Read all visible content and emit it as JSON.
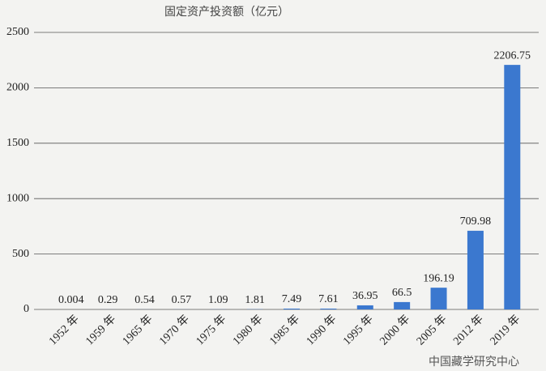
{
  "chart_data": {
    "type": "bar",
    "title": "固定资产投资额（亿元）",
    "categories": [
      "1952 年",
      "1959 年",
      "1965 年",
      "1970 年",
      "1975 年",
      "1980 年",
      "1985 年",
      "1990 年",
      "1995 年",
      "2000 年",
      "2005 年",
      "2012 年",
      "2019 年"
    ],
    "values": [
      0.004,
      0.29,
      0.54,
      0.57,
      1.09,
      1.81,
      7.49,
      7.61,
      36.95,
      66.5,
      196.19,
      709.98,
      2206.75
    ],
    "color": "#3b78cf",
    "ylim": [
      0,
      2500
    ],
    "yticks": [
      0,
      500,
      1000,
      1500,
      2000,
      2500
    ],
    "grid": true,
    "watermark": "中国藏学研究中心"
  }
}
